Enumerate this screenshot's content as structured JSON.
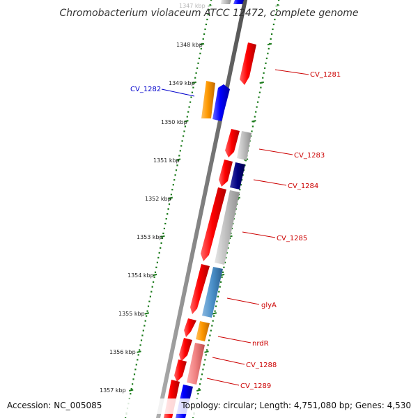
{
  "title": "Chromobacterium violaceum ATCC 12472, complete genome",
  "footer": {
    "accession": "Accession: NC_005085",
    "topology": "Topology: circular; Length: 4,751,080 bp; Genes: 4,530"
  },
  "ruler": [
    {
      "label": "1347 kbp",
      "faded": true
    },
    {
      "label": "1348 kbp"
    },
    {
      "label": "1349 kbp"
    },
    {
      "label": "1350 kbp"
    },
    {
      "label": "1351 kbp"
    },
    {
      "label": "1352 kbp"
    },
    {
      "label": "1353 kbp"
    },
    {
      "label": "1354 kbp"
    },
    {
      "label": "1355 kbp"
    },
    {
      "label": "1356 kbp"
    },
    {
      "label": "1357 kbp"
    }
  ],
  "gene_labels": [
    {
      "text": "CV_1281",
      "color": "#cc0000"
    },
    {
      "text": "CV_1282",
      "color": "#0000cc"
    },
    {
      "text": "CV_1283",
      "color": "#cc0000"
    },
    {
      "text": "CV_1284",
      "color": "#cc0000"
    },
    {
      "text": "CV_1285",
      "color": "#cc0000"
    },
    {
      "text": "glyA",
      "color": "#cc0000"
    },
    {
      "text": "nrdR",
      "color": "#cc0000"
    },
    {
      "text": "CV_1288",
      "color": "#cc0000"
    },
    {
      "text": "CV_1289",
      "color": "#cc0000"
    }
  ],
  "colors": {
    "forward_cds": "#ff0000",
    "reverse_cds": "#0000ff",
    "orange": "#ff9900",
    "grey": "#bbbbbb",
    "navy": "#000080",
    "steel": "#4a8fc8",
    "pink": "#f08080",
    "ruler": "#1a7a1a",
    "backbone": "#808080"
  }
}
